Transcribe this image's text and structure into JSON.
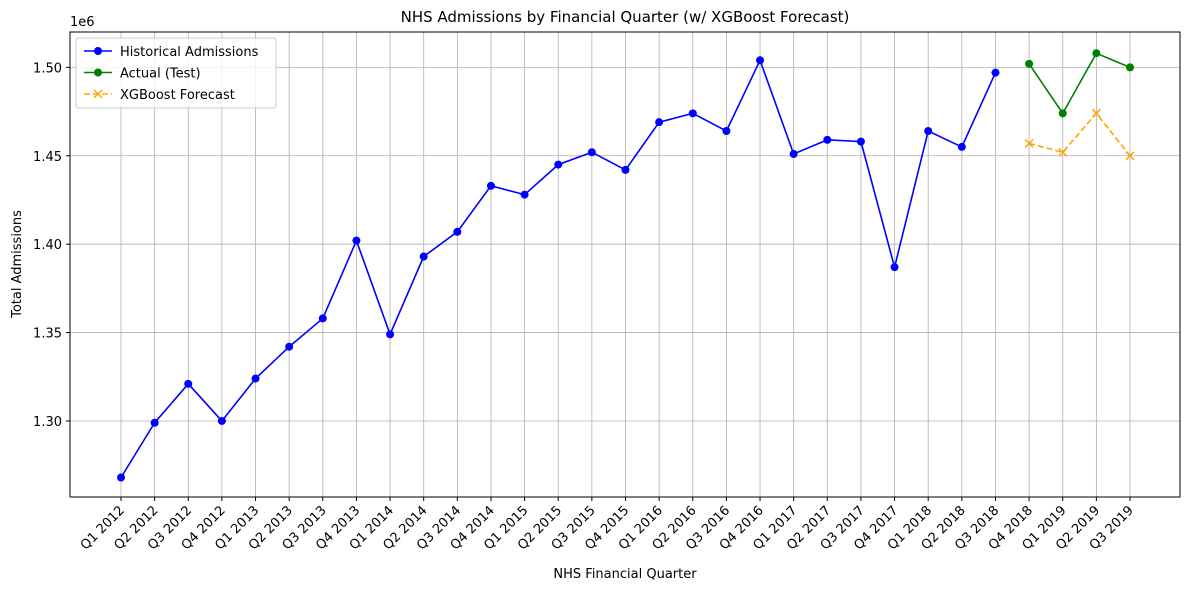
{
  "chart_data": {
    "type": "line",
    "title": "NHS Admissions by Financial Quarter (w/ XGBoost Forecast)",
    "xlabel": "NHS Financial Quarter",
    "ylabel": "Total Admissions",
    "y_offset_label": "1e6",
    "categories": [
      "Q1 2012",
      "Q2 2012",
      "Q3 2012",
      "Q4 2012",
      "Q1 2013",
      "Q2 2013",
      "Q3 2013",
      "Q4 2013",
      "Q1 2014",
      "Q2 2014",
      "Q3 2014",
      "Q4 2014",
      "Q1 2015",
      "Q2 2015",
      "Q3 2015",
      "Q4 2015",
      "Q1 2016",
      "Q2 2016",
      "Q3 2016",
      "Q4 2016",
      "Q1 2017",
      "Q2 2017",
      "Q3 2017",
      "Q4 2017",
      "Q1 2018",
      "Q2 2018",
      "Q3 2018",
      "Q4 2018",
      "Q1 2019",
      "Q2 2019",
      "Q3 2019"
    ],
    "series": [
      {
        "name": "Historical Admissions",
        "color": "#0000ff",
        "marker": "circle",
        "dash": false,
        "values": [
          1.268,
          1.299,
          1.321,
          1.3,
          1.324,
          1.342,
          1.358,
          1.402,
          1.349,
          1.393,
          1.407,
          1.433,
          1.428,
          1.445,
          1.452,
          1.442,
          1.469,
          1.474,
          1.464,
          1.504,
          1.451,
          1.459,
          1.458,
          1.387,
          1.464,
          1.455,
          1.497,
          null,
          null,
          null,
          null
        ]
      },
      {
        "name": "Actual (Test)",
        "color": "#008000",
        "marker": "circle",
        "dash": false,
        "values": [
          null,
          null,
          null,
          null,
          null,
          null,
          null,
          null,
          null,
          null,
          null,
          null,
          null,
          null,
          null,
          null,
          null,
          null,
          null,
          null,
          null,
          null,
          null,
          null,
          null,
          null,
          null,
          1.502,
          1.474,
          1.508,
          1.5
        ]
      },
      {
        "name": "XGBoost Forecast",
        "color": "#ffa500",
        "marker": "x",
        "dash": true,
        "values": [
          null,
          null,
          null,
          null,
          null,
          null,
          null,
          null,
          null,
          null,
          null,
          null,
          null,
          null,
          null,
          null,
          null,
          null,
          null,
          null,
          null,
          null,
          null,
          null,
          null,
          null,
          null,
          1.457,
          1.452,
          1.474,
          1.45
        ]
      }
    ],
    "ylim": [
      1.257,
      1.52
    ],
    "yticks": [
      {
        "value": 1.3,
        "label": "1.30"
      },
      {
        "value": 1.35,
        "label": "1.35"
      },
      {
        "value": 1.4,
        "label": "1.40"
      },
      {
        "value": 1.45,
        "label": "1.45"
      },
      {
        "value": 1.5,
        "label": "1.50"
      }
    ],
    "grid": true,
    "legend": "upper left"
  }
}
